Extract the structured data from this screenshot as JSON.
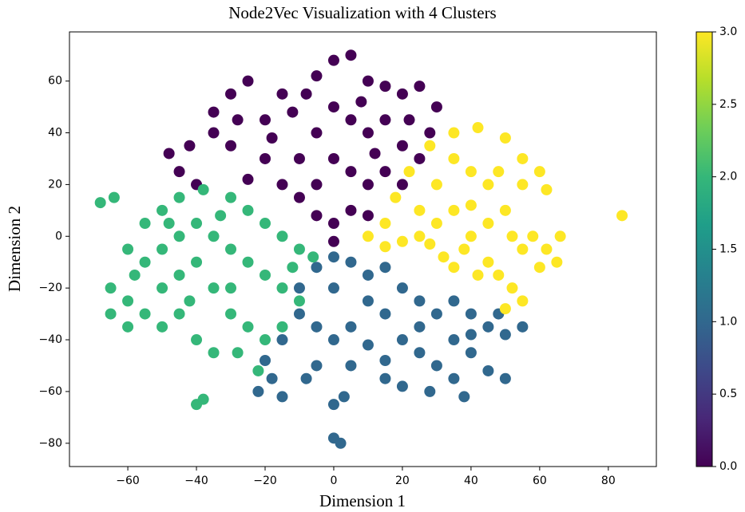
{
  "chart_data": {
    "type": "scatter",
    "title": "Node2Vec Visualization with 4 Clusters",
    "xlabel": "Dimension 1",
    "ylabel": "Dimension 2",
    "xlim": [
      -77,
      94
    ],
    "ylim": [
      -89,
      79
    ],
    "xticks": [
      {
        "value": -60,
        "label": "−60"
      },
      {
        "value": -40,
        "label": "−40"
      },
      {
        "value": -20,
        "label": "−20"
      },
      0,
      20,
      40,
      60,
      80
    ],
    "yticks": [
      {
        "value": -80,
        "label": "−80"
      },
      {
        "value": -60,
        "label": "−60"
      },
      {
        "value": -40,
        "label": "−40"
      },
      {
        "value": -20,
        "label": "−20"
      },
      0,
      20,
      40,
      60
    ],
    "series": [
      {
        "color": "#440154",
        "x": [
          -30,
          -25,
          -28,
          -35,
          -42,
          -48,
          -45,
          -40,
          -20,
          -15,
          -5,
          0,
          5,
          10,
          15,
          20,
          25,
          30,
          28,
          -20,
          -25,
          -15,
          -10,
          -5,
          0,
          5,
          10,
          15,
          20,
          25,
          -10,
          -5,
          0,
          5,
          10,
          15,
          20,
          -5,
          0,
          5,
          10,
          0,
          -12,
          -8,
          8,
          22,
          -30,
          -35,
          -18,
          12
        ],
        "values": [
          55,
          60,
          45,
          40,
          35,
          32,
          25,
          20,
          45,
          55,
          62,
          68,
          70,
          60,
          58,
          55,
          58,
          50,
          40,
          30,
          22,
          20,
          30,
          40,
          50,
          45,
          40,
          45,
          35,
          30,
          15,
          20,
          30,
          25,
          20,
          25,
          20,
          8,
          5,
          10,
          8,
          -2,
          48,
          55,
          52,
          45,
          35,
          48,
          38,
          32
        ]
      },
      {
        "color": "#31688e",
        "x": [
          0,
          5,
          -5,
          10,
          15,
          -10,
          0,
          10,
          20,
          25,
          30,
          35,
          40,
          45,
          50,
          55,
          -10,
          -5,
          0,
          5,
          10,
          15,
          20,
          25,
          30,
          35,
          40,
          45,
          50,
          -15,
          -20,
          -18,
          -22,
          -15,
          -8,
          0,
          3,
          0,
          2,
          15,
          20,
          28,
          38,
          35,
          25,
          15,
          -5,
          5,
          40,
          48
        ],
        "values": [
          -8,
          -10,
          -12,
          -15,
          -12,
          -20,
          -20,
          -25,
          -20,
          -25,
          -30,
          -25,
          -30,
          -35,
          -38,
          -35,
          -30,
          -35,
          -40,
          -35,
          -42,
          -48,
          -40,
          -45,
          -50,
          -55,
          -45,
          -52,
          -55,
          -40,
          -48,
          -55,
          -60,
          -62,
          -55,
          -65,
          -62,
          -78,
          -80,
          -55,
          -58,
          -60,
          -62,
          -40,
          -35,
          -30,
          -50,
          -50,
          -38,
          -30
        ]
      },
      {
        "color": "#35b779",
        "x": [
          -68,
          -64,
          -55,
          -50,
          -45,
          -38,
          -30,
          -25,
          -20,
          -15,
          -10,
          -6,
          -60,
          -55,
          -50,
          -45,
          -40,
          -35,
          -30,
          -25,
          -20,
          -15,
          -10,
          -65,
          -60,
          -55,
          -50,
          -45,
          -40,
          -35,
          -30,
          -25,
          -20,
          -15,
          -65,
          -60,
          -50,
          -45,
          -40,
          -35,
          -28,
          -22,
          -40,
          -38,
          -58,
          -48,
          -33,
          -12,
          -30,
          -42
        ],
        "values": [
          13,
          15,
          5,
          10,
          15,
          18,
          15,
          10,
          5,
          0,
          -5,
          -8,
          -5,
          -10,
          -5,
          0,
          5,
          0,
          -5,
          -10,
          -15,
          -20,
          -25,
          -20,
          -25,
          -30,
          -20,
          -15,
          -10,
          -20,
          -30,
          -35,
          -40,
          -35,
          -30,
          -35,
          -35,
          -30,
          -40,
          -45,
          -45,
          -52,
          -65,
          -63,
          -15,
          5,
          8,
          -12,
          -20,
          -25
        ]
      },
      {
        "color": "#fde725",
        "x": [
          10,
          15,
          18,
          22,
          28,
          35,
          42,
          50,
          55,
          60,
          62,
          55,
          45,
          40,
          35,
          30,
          25,
          20,
          30,
          35,
          40,
          45,
          50,
          38,
          45,
          55,
          62,
          65,
          60,
          52,
          48,
          42,
          35,
          28,
          55,
          50,
          58,
          66,
          48,
          84,
          32,
          25,
          15,
          40,
          52
        ],
        "values": [
          0,
          5,
          15,
          25,
          35,
          40,
          42,
          38,
          30,
          25,
          18,
          20,
          20,
          25,
          30,
          20,
          10,
          -2,
          5,
          10,
          0,
          5,
          10,
          -5,
          -10,
          -5,
          -5,
          -10,
          -12,
          -20,
          -15,
          -15,
          -12,
          -3,
          -25,
          -28,
          0,
          0,
          25,
          8,
          -8,
          0,
          -4,
          12,
          0
        ]
      }
    ],
    "colorbar": {
      "lim": [
        0,
        3
      ],
      "ticks": [
        {
          "value": 0,
          "label": "0.0"
        },
        {
          "value": 0.5,
          "label": "0.5"
        },
        {
          "value": 1,
          "label": "1.0"
        },
        {
          "value": 1.5,
          "label": "1.5"
        },
        {
          "value": 2,
          "label": "2.0"
        },
        {
          "value": 2.5,
          "label": "2.5"
        },
        {
          "value": 3,
          "label": "3.0"
        }
      ],
      "colors": [
        "#440154",
        "#482878",
        "#3e4989",
        "#31688e",
        "#26828e",
        "#1f9e89",
        "#35b779",
        "#6ece58",
        "#b5de2b",
        "#fde725"
      ]
    }
  }
}
